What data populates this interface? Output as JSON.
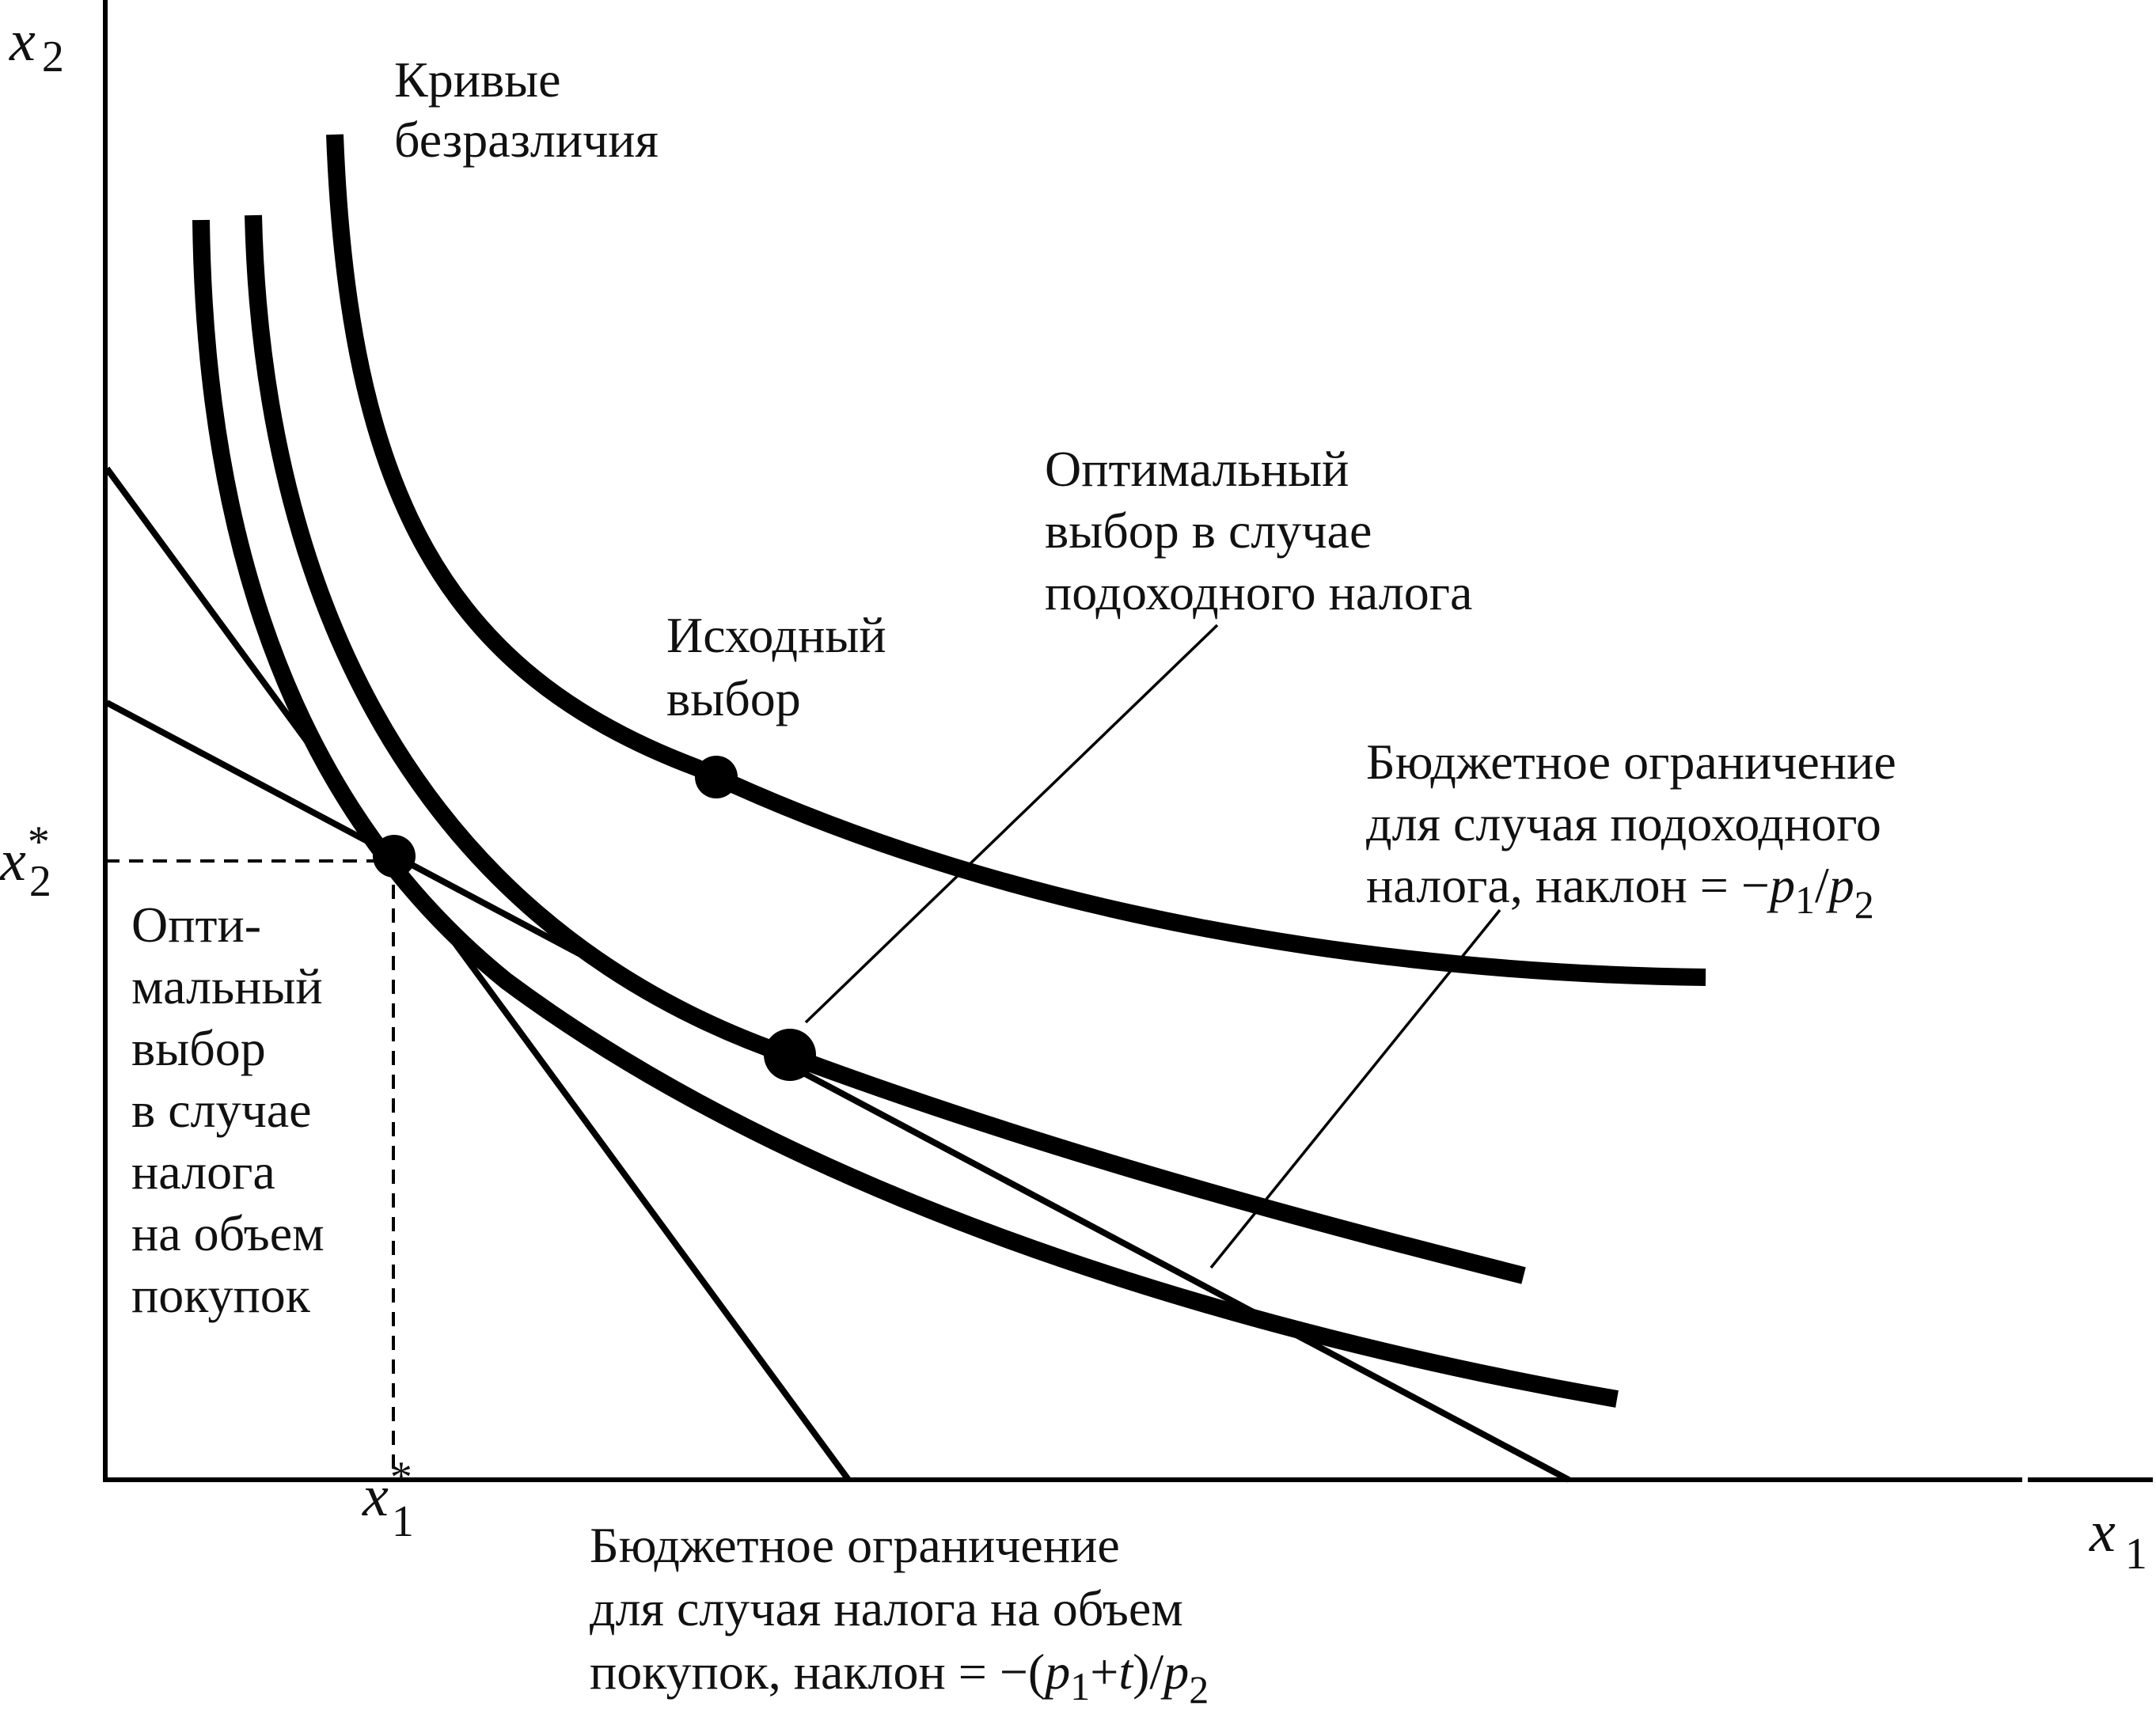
{
  "axes": {
    "y_var": "x",
    "y_sub": "2",
    "x_var": "x",
    "x_sub": "1",
    "x_star_var": "x",
    "x_star_sup": "*",
    "x_star_sub": "1",
    "y_star_var": "x",
    "y_star_sup": "*",
    "y_star_sub": "2"
  },
  "labels": {
    "indifference": [
      "Кривые",
      "безразличия"
    ],
    "original_choice": [
      "Исходный",
      "выбор"
    ],
    "income_tax_optimum": [
      "Оптимальный",
      "выбор в случае",
      "подоходного налога"
    ],
    "income_tax_budget": {
      "lines": [
        "Бюджетное ограничение",
        "для случая подоходного"
      ],
      "slope_prefix": "налога, наклон = −",
      "p1": "p",
      "p1_sub": "1",
      "slash": "/",
      "p2": "p",
      "p2_sub": "2"
    },
    "quantity_tax_optimum": [
      "Опти-",
      "мальный",
      "выбор",
      "в случае",
      "налога",
      "на объем",
      "покупок"
    ],
    "quantity_tax_budget": {
      "lines": [
        "Бюджетное ограничение",
        "для случая налога на объем"
      ],
      "slope_prefix": "покупок, наклон = −(",
      "p1": "p",
      "p1_sub": "1",
      "plus": "+",
      "t": "t",
      "close": ")/",
      "p2": "p",
      "p2_sub": "2"
    }
  }
}
